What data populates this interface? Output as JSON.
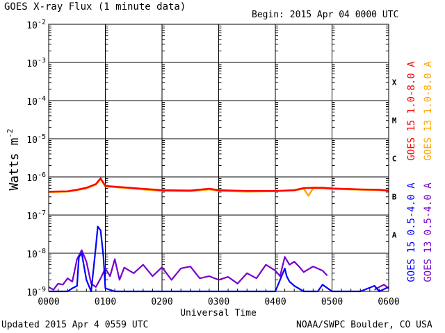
{
  "header": {
    "title": "GOES X-ray Flux (1 minute data)",
    "begin": "Begin: 2015 Apr 04 0000 UTC"
  },
  "footer": {
    "updated": "Updated 2015 Apr  4 0559 UTC",
    "credit": "NOAA/SWPC Boulder, CO USA"
  },
  "chart_data": {
    "type": "line",
    "title": "GOES X-ray Flux (1 minute data)",
    "xlabel": "Universal Time",
    "ylabel": "Watts m",
    "ylabel_superscript": "-2",
    "yscale": "log",
    "ylim": [
      1e-09,
      0.01
    ],
    "xlim": [
      "0000",
      "0600"
    ],
    "x_ticks": [
      "0000",
      "0100",
      "0200",
      "0300",
      "0400",
      "0500",
      "0600"
    ],
    "y_ticks": [
      {
        "base": "10",
        "exp": "-9"
      },
      {
        "base": "10",
        "exp": "-8"
      },
      {
        "base": "10",
        "exp": "-7"
      },
      {
        "base": "10",
        "exp": "-6"
      },
      {
        "base": "10",
        "exp": "-5"
      },
      {
        "base": "10",
        "exp": "-4"
      },
      {
        "base": "10",
        "exp": "-3"
      },
      {
        "base": "10",
        "exp": "-2"
      }
    ],
    "flare_classes": [
      "A",
      "B",
      "C",
      "M",
      "X"
    ],
    "grid": true,
    "legend_position": "right",
    "series": [
      {
        "name": "GOES 15 1.0-8.0 A",
        "color": "#ff0000",
        "x": [
          "0000",
          "0020",
          "0030",
          "0040",
          "0045",
          "0050",
          "0055",
          "0100",
          "0130",
          "0200",
          "0230",
          "0250",
          "0300",
          "0330",
          "0400",
          "0420",
          "0430",
          "0440",
          "0450",
          "0500",
          "0530",
          "0550",
          "0600"
        ],
        "y": [
          4.1e-07,
          4.2e-07,
          4.6e-07,
          5.2e-07,
          5.8e-07,
          6.5e-07,
          9.2e-07,
          5.8e-07,
          5.1e-07,
          4.5e-07,
          4.4e-07,
          4.9e-07,
          4.5e-07,
          4.3e-07,
          4.3e-07,
          4.5e-07,
          5.1e-07,
          5.2e-07,
          5.2e-07,
          5e-07,
          4.7e-07,
          4.6e-07,
          4.4e-07
        ]
      },
      {
        "name": "GOES 13 1.0-8.0 A",
        "color": "#ffa500",
        "x": [
          "0000",
          "0020",
          "0030",
          "0040",
          "0045",
          "0050",
          "0055",
          "0100",
          "0130",
          "0200",
          "0230",
          "0250",
          "0300",
          "0330",
          "0400",
          "0420",
          "0430",
          "0435",
          "0440",
          "0450",
          "0500",
          "0530",
          "0550",
          "0600"
        ],
        "y": [
          4e-07,
          4.1e-07,
          4.5e-07,
          5e-07,
          5.6e-07,
          6.3e-07,
          8.8e-07,
          5.6e-07,
          4.9e-07,
          4.3e-07,
          4.2e-07,
          4.7e-07,
          4.3e-07,
          4.1e-07,
          4.2e-07,
          4.4e-07,
          4.9e-07,
          3.2e-07,
          5e-07,
          5e-07,
          4.8e-07,
          4.6e-07,
          4.5e-07,
          4.3e-07
        ]
      },
      {
        "name": "GOES 15 0.5-4.0 A",
        "color": "#0000ff",
        "x": [
          "0000",
          "0010",
          "0020",
          "0025",
          "0030",
          "0032",
          "0035",
          "0040",
          "0045",
          "0050",
          "0052",
          "0055",
          "0058",
          "0100",
          "0110",
          "0120",
          "0200",
          "0250",
          "0300",
          "0400",
          "0410",
          "0412",
          "0415",
          "0420",
          "0430",
          "0435",
          "0445",
          "0450",
          "0500",
          "0530",
          "0545",
          "0550",
          "0600"
        ],
        "y": [
          1e-09,
          1e-09,
          1e-09,
          1.2e-09,
          1.4e-09,
          8e-09,
          1e-08,
          2e-09,
          1e-09,
          1.5e-08,
          5e-08,
          4e-08,
          8e-09,
          1.2e-09,
          1e-09,
          1e-09,
          1e-09,
          1e-09,
          1e-09,
          1e-09,
          4e-09,
          2.5e-09,
          1.8e-09,
          1.4e-09,
          1e-09,
          1e-09,
          1e-09,
          1.5e-09,
          1e-09,
          1e-09,
          1.4e-09,
          1e-09,
          1.3e-09
        ]
      },
      {
        "name": "GOES 13 0.5-4.0 A",
        "color": "#7700cc",
        "x": [
          "0000",
          "0005",
          "0010",
          "0015",
          "0020",
          "0025",
          "0030",
          "0035",
          "0040",
          "0045",
          "0050",
          "0055",
          "0100",
          "0105",
          "0110",
          "0115",
          "0120",
          "0130",
          "0140",
          "0150",
          "0200",
          "0210",
          "0220",
          "0230",
          "0240",
          "0250",
          "0300",
          "0310",
          "0320",
          "0330",
          "0340",
          "0350",
          "0400",
          "0405",
          "0410",
          "0415",
          "0420",
          "0425",
          "0430",
          "0440",
          "0450",
          "0455"
        ],
        "y": [
          1.3e-09,
          1.1e-09,
          1.6e-09,
          1.5e-09,
          2.2e-09,
          1.8e-09,
          7e-09,
          1.2e-08,
          6e-09,
          1.6e-09,
          1.3e-09,
          2.2e-09,
          4e-09,
          2.5e-09,
          7e-09,
          2e-09,
          4.2e-09,
          3e-09,
          5e-09,
          2.5e-09,
          4.3e-09,
          2e-09,
          4e-09,
          4.5e-09,
          2.2e-09,
          2.5e-09,
          2e-09,
          2.4e-09,
          1.6e-09,
          3e-09,
          2.2e-09,
          5e-09,
          3.5e-09,
          2.5e-09,
          8e-09,
          5e-09,
          6e-09,
          4.5e-09,
          3.2e-09,
          4.5e-09,
          3.5e-09,
          2.6e-09
        ],
        "x2": [
          "0545",
          "0550",
          "0555",
          "0600"
        ],
        "y2": [
          1.1e-09,
          1.3e-09,
          1.5e-09,
          1.2e-09
        ]
      }
    ]
  }
}
